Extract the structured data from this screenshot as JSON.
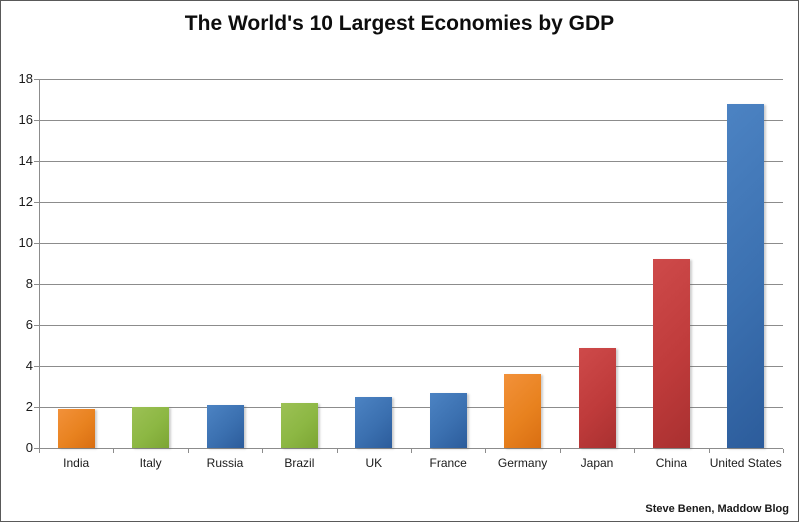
{
  "page": {
    "attribution": "Steve Benen, Maddow Blog"
  },
  "colors": {
    "background": "#FFFFFF",
    "frame_border": "#595959",
    "gridline": "#8C8C8C",
    "axis": "#8C8C8C",
    "label_text": "#1A1A1A",
    "title_text": "#0D0D0D"
  },
  "chart_data": {
    "type": "bar",
    "title": "The World's 10 Largest Economies by GDP",
    "xlabel": "",
    "ylabel": "",
    "categories": [
      "India",
      "Italy",
      "Russia",
      "Brazil",
      "UK",
      "France",
      "Germany",
      "Japan",
      "China",
      "United States"
    ],
    "values": [
      1.9,
      2.0,
      2.1,
      2.2,
      2.5,
      2.7,
      3.6,
      4.9,
      9.2,
      16.8
    ],
    "bar_colors": [
      "orange",
      "green",
      "blue",
      "green",
      "blue",
      "blue",
      "orange",
      "red",
      "red",
      "blue"
    ],
    "palette": {
      "orange": {
        "light": "#F2913A",
        "base": "#E8821F",
        "dark": "#D96E12"
      },
      "green": {
        "light": "#9CC155",
        "base": "#8CB743",
        "dark": "#7CA534"
      },
      "blue": {
        "light": "#4C83C3",
        "base": "#3B70B0",
        "dark": "#2C5C9B"
      },
      "red": {
        "light": "#CE4A4A",
        "base": "#BF3B3B",
        "dark": "#A93030"
      }
    },
    "ylim": [
      0,
      18
    ],
    "yticks": [
      0,
      2,
      4,
      6,
      8,
      10,
      12,
      14,
      16,
      18
    ],
    "grid": true,
    "legend": false
  }
}
